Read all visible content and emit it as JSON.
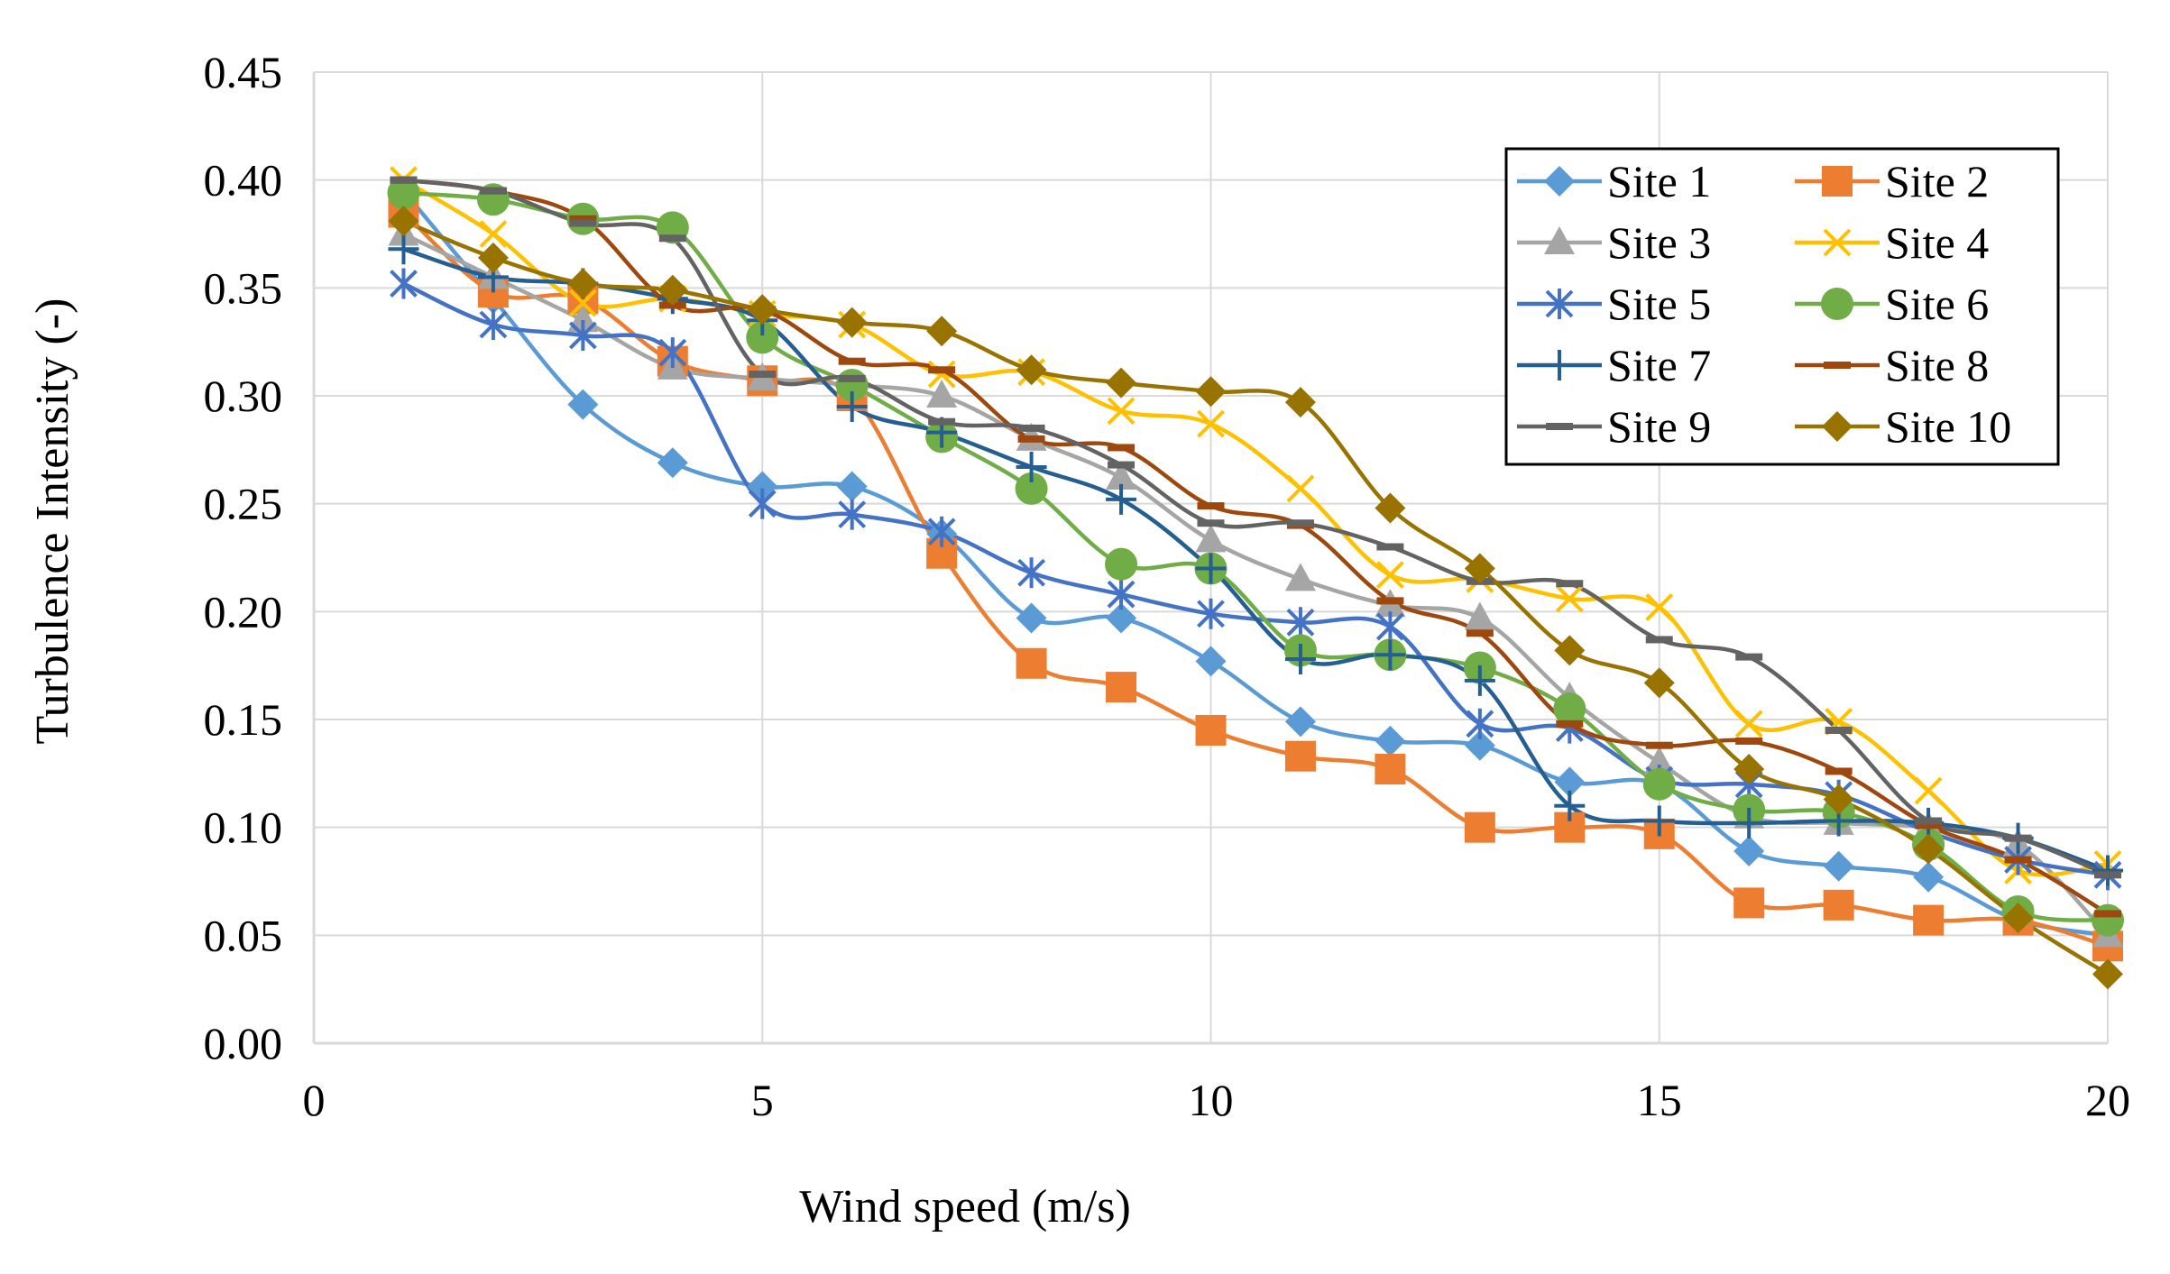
{
  "chart_data": {
    "type": "line",
    "title": "",
    "xlabel": "Wind speed (m/s)",
    "ylabel": "Turbulence Intensity (-)",
    "xlim": [
      0,
      20
    ],
    "ylim": [
      0,
      0.45
    ],
    "xticks": [
      0,
      5,
      10,
      15,
      20
    ],
    "xtick_labels": [
      "0",
      "5",
      "10",
      "15",
      "20"
    ],
    "yticks": [
      0,
      0.05,
      0.1,
      0.15,
      0.2,
      0.25,
      0.3,
      0.35,
      0.4,
      0.45
    ],
    "ytick_labels": [
      "0.00",
      "0.05",
      "0.10",
      "0.15",
      "0.20",
      "0.25",
      "0.30",
      "0.35",
      "0.40",
      "0.45"
    ],
    "grid": true,
    "legend_position": "top-right",
    "x": [
      1,
      2,
      3,
      4,
      5,
      6,
      7,
      8,
      9,
      10,
      11,
      12,
      13,
      14,
      15,
      16,
      17,
      18,
      19,
      20
    ],
    "series": [
      {
        "name": "Site 1",
        "color": "#5B9BD5",
        "marker": "diamond",
        "values": [
          0.395,
          0.345,
          0.296,
          0.269,
          0.258,
          0.258,
          0.236,
          0.197,
          0.197,
          0.177,
          0.149,
          0.14,
          0.138,
          0.121,
          0.12,
          0.089,
          0.082,
          0.077,
          0.057,
          0.05
        ]
      },
      {
        "name": "Site 2",
        "color": "#ED7D31",
        "marker": "square",
        "values": [
          0.385,
          0.348,
          0.345,
          0.316,
          0.307,
          0.3,
          0.227,
          0.176,
          0.165,
          0.145,
          0.133,
          0.127,
          0.1,
          0.1,
          0.097,
          0.065,
          0.064,
          0.057,
          0.057,
          0.045
        ]
      },
      {
        "name": "Site 3",
        "color": "#A5A5A5",
        "marker": "triangle",
        "values": [
          0.375,
          0.355,
          0.335,
          0.313,
          0.308,
          0.305,
          0.3,
          0.28,
          0.262,
          0.233,
          0.215,
          0.203,
          0.197,
          0.16,
          0.13,
          0.105,
          0.102,
          0.1,
          0.092,
          0.05
        ]
      },
      {
        "name": "Site 4",
        "color": "#FFC000",
        "marker": "x",
        "values": [
          0.4,
          0.375,
          0.343,
          0.345,
          0.338,
          0.333,
          0.31,
          0.311,
          0.293,
          0.287,
          0.257,
          0.217,
          0.215,
          0.206,
          0.202,
          0.148,
          0.149,
          0.117,
          0.08,
          0.083
        ]
      },
      {
        "name": "Site 5",
        "color": "#4472C4",
        "marker": "asterisk",
        "values": [
          0.352,
          0.333,
          0.328,
          0.32,
          0.25,
          0.245,
          0.237,
          0.218,
          0.208,
          0.199,
          0.195,
          0.193,
          0.148,
          0.146,
          0.122,
          0.12,
          0.115,
          0.098,
          0.085,
          0.078
        ]
      },
      {
        "name": "Site 6",
        "color": "#70AD47",
        "marker": "circle",
        "values": [
          0.394,
          0.391,
          0.382,
          0.378,
          0.327,
          0.305,
          0.281,
          0.257,
          0.222,
          0.22,
          0.182,
          0.18,
          0.174,
          0.155,
          0.12,
          0.108,
          0.107,
          0.092,
          0.061,
          0.057
        ]
      },
      {
        "name": "Site 7",
        "color": "#255E91",
        "marker": "plus",
        "values": [
          0.368,
          0.355,
          0.352,
          0.345,
          0.335,
          0.295,
          0.283,
          0.267,
          0.252,
          0.22,
          0.178,
          0.18,
          0.168,
          0.11,
          0.103,
          0.102,
          0.103,
          0.102,
          0.095,
          0.08
        ]
      },
      {
        "name": "Site 8",
        "color": "#9E480E",
        "marker": "dash",
        "values": [
          0.4,
          0.395,
          0.382,
          0.342,
          0.34,
          0.316,
          0.312,
          0.28,
          0.276,
          0.249,
          0.24,
          0.205,
          0.19,
          0.148,
          0.138,
          0.14,
          0.126,
          0.101,
          0.085,
          0.06
        ]
      },
      {
        "name": "Site 9",
        "color": "#636363",
        "marker": "dash",
        "values": [
          0.4,
          0.395,
          0.38,
          0.373,
          0.31,
          0.308,
          0.288,
          0.285,
          0.268,
          0.241,
          0.241,
          0.23,
          0.214,
          0.213,
          0.187,
          0.179,
          0.145,
          0.103,
          0.095,
          0.078
        ]
      },
      {
        "name": "Site 10",
        "color": "#997300",
        "marker": "diamond",
        "values": [
          0.381,
          0.364,
          0.352,
          0.349,
          0.34,
          0.334,
          0.33,
          0.312,
          0.306,
          0.302,
          0.297,
          0.248,
          0.22,
          0.182,
          0.167,
          0.127,
          0.113,
          0.09,
          0.058,
          0.032
        ]
      }
    ]
  }
}
